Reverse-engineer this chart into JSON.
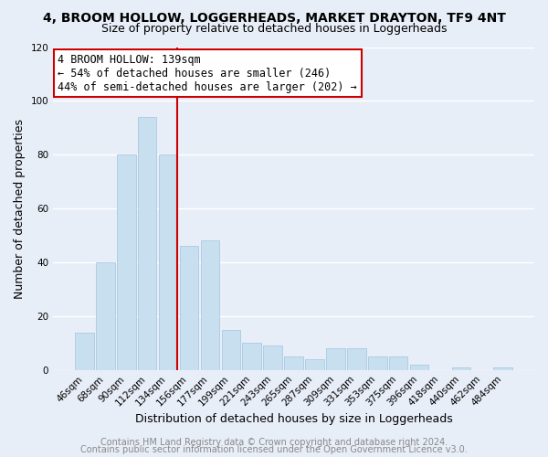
{
  "title": "4, BROOM HOLLOW, LOGGERHEADS, MARKET DRAYTON, TF9 4NT",
  "subtitle": "Size of property relative to detached houses in Loggerheads",
  "xlabel": "Distribution of detached houses by size in Loggerheads",
  "ylabel": "Number of detached properties",
  "bar_color": "#c8dff0",
  "bar_edge_color": "#a0c4e0",
  "highlight_color": "#cc0000",
  "background_color": "#e8eef8",
  "plot_bg_color": "#e8eef8",
  "grid_color": "#ffffff",
  "categories": [
    "46sqm",
    "68sqm",
    "90sqm",
    "112sqm",
    "134sqm",
    "156sqm",
    "177sqm",
    "199sqm",
    "221sqm",
    "243sqm",
    "265sqm",
    "287sqm",
    "309sqm",
    "331sqm",
    "353sqm",
    "375sqm",
    "396sqm",
    "418sqm",
    "440sqm",
    "462sqm",
    "484sqm"
  ],
  "values": [
    14,
    40,
    80,
    94,
    80,
    46,
    48,
    15,
    10,
    9,
    5,
    4,
    8,
    8,
    5,
    5,
    2,
    0,
    1,
    0,
    1
  ],
  "highlight_index": 4,
  "ylim": [
    0,
    120
  ],
  "yticks": [
    0,
    20,
    40,
    60,
    80,
    100,
    120
  ],
  "annotation_title": "4 BROOM HOLLOW: 139sqm",
  "annotation_line1": "← 54% of detached houses are smaller (246)",
  "annotation_line2": "44% of semi-detached houses are larger (202) →",
  "footer1": "Contains HM Land Registry data © Crown copyright and database right 2024.",
  "footer2": "Contains public sector information licensed under the Open Government Licence v3.0.",
  "title_fontsize": 10,
  "subtitle_fontsize": 9,
  "axis_label_fontsize": 9,
  "tick_fontsize": 7.5,
  "annotation_fontsize": 8.5,
  "footer_fontsize": 7
}
